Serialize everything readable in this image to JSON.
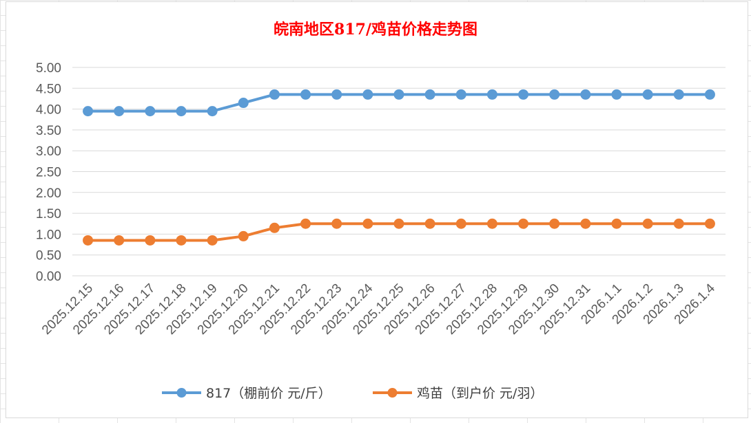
{
  "chart_data": {
    "type": "line",
    "title": "皖南地区817/鸡苗价格走势图",
    "title_color": "#ff0000",
    "categories": [
      "2025.12.15",
      "2025.12.16",
      "2025.12.17",
      "2025.12.18",
      "2025.12.19",
      "2025.12.20",
      "2025.12.21",
      "2025.12.22",
      "2025.12.23",
      "2025.12.24",
      "2025.12.25",
      "2025.12.26",
      "2025.12.27",
      "2025.12.28",
      "2025.12.29",
      "2025.12.30",
      "2025.12.31",
      "2026.1.1",
      "2026.1.2",
      "2026.1.3",
      "2026.1.4"
    ],
    "series": [
      {
        "name": "817（棚前价 元/斤）",
        "color": "#5b9bd5",
        "values": [
          3.95,
          3.95,
          3.95,
          3.95,
          3.95,
          4.15,
          4.35,
          4.35,
          4.35,
          4.35,
          4.35,
          4.35,
          4.35,
          4.35,
          4.35,
          4.35,
          4.35,
          4.35,
          4.35,
          4.35,
          4.35
        ]
      },
      {
        "name": "鸡苗（到户价 元/羽）",
        "color": "#ed7d31",
        "values": [
          0.85,
          0.85,
          0.85,
          0.85,
          0.85,
          0.95,
          1.15,
          1.25,
          1.25,
          1.25,
          1.25,
          1.25,
          1.25,
          1.25,
          1.25,
          1.25,
          1.25,
          1.25,
          1.25,
          1.25,
          1.25
        ]
      }
    ],
    "ylim": [
      0,
      5
    ],
    "yticks": [
      "0.00",
      "0.50",
      "1.00",
      "1.50",
      "2.00",
      "2.50",
      "3.00",
      "3.50",
      "4.00",
      "4.50",
      "5.00"
    ],
    "grid": true,
    "legend_position": "bottom"
  }
}
